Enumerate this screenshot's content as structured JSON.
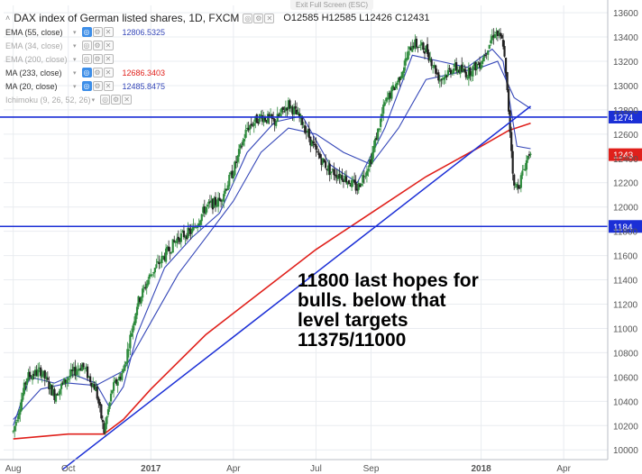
{
  "header": {
    "title": "DAX index of German listed shares, 1D, FXCM",
    "open": "O12585",
    "high": "H12585",
    "low": "L12426",
    "close": "C12431",
    "exit_full_screen": "Exit Full Screen (ESC)",
    "collapse_glyph": "˄",
    "button_glyphs": [
      "◎",
      "⚙",
      "✕",
      "▾"
    ]
  },
  "indicators": [
    {
      "name": "EMA (55, close)",
      "value": "12806.5325",
      "color": "#3547b8",
      "visible": true
    },
    {
      "name": "EMA (34, close)",
      "value": "",
      "color": "#999999",
      "visible": false
    },
    {
      "name": "EMA (200, close)",
      "value": "",
      "color": "#999999",
      "visible": false
    },
    {
      "name": "MA (233, close)",
      "value": "12686.3403",
      "color": "#e0201b",
      "visible": true
    },
    {
      "name": "MA (20, close)",
      "value": "12485.8475",
      "color": "#3547b8",
      "visible": true
    },
    {
      "name": "Ichimoku (9, 26, 52, 26)",
      "value": "",
      "color": "#999999",
      "visible": false
    }
  ],
  "annotation": "11800 last hopes for\nbulls. below that\nlevel targets\n11375/11000",
  "chart_data": {
    "type": "candlestick",
    "symbol": "DAX",
    "interval": "1D",
    "x_ticks": [
      "Aug",
      "Oct",
      "2017",
      "Apr",
      "Jul",
      "Sep",
      "2018",
      "Apr"
    ],
    "x_tick_months": [
      0,
      2,
      5,
      8,
      11,
      13,
      17,
      20
    ],
    "x_range_months": [
      -0.35,
      21.6
    ],
    "ylim": [
      9920,
      13660
    ],
    "y_ticks": [
      13600,
      13400,
      13200,
      13000,
      12800,
      12600,
      12400,
      12200,
      12000,
      11800,
      11600,
      11400,
      11200,
      11000,
      10800,
      10600,
      10400,
      10200,
      10000
    ],
    "price_path": [
      [
        0,
        10150
      ],
      [
        0.5,
        10600
      ],
      [
        1,
        10650
      ],
      [
        1.5,
        10450
      ],
      [
        2,
        10600
      ],
      [
        2.5,
        10700
      ],
      [
        3,
        10500
      ],
      [
        3.3,
        10150
      ],
      [
        3.6,
        10500
      ],
      [
        4,
        10650
      ],
      [
        4.5,
        11200
      ],
      [
        5,
        11450
      ],
      [
        5.5,
        11600
      ],
      [
        6,
        11750
      ],
      [
        6.5,
        11800
      ],
      [
        7,
        12000
      ],
      [
        7.5,
        12050
      ],
      [
        8,
        12300
      ],
      [
        8.5,
        12650
      ],
      [
        9,
        12750
      ],
      [
        9.5,
        12700
      ],
      [
        10,
        12850
      ],
      [
        10.5,
        12700
      ],
      [
        11,
        12450
      ],
      [
        11.5,
        12300
      ],
      [
        12,
        12250
      ],
      [
        12.5,
        12150
      ],
      [
        13,
        12400
      ],
      [
        13.5,
        12850
      ],
      [
        14,
        13050
      ],
      [
        14.5,
        13350
      ],
      [
        15,
        13300
      ],
      [
        15.5,
        13050
      ],
      [
        16,
        13150
      ],
      [
        16.5,
        13100
      ],
      [
        17,
        13200
      ],
      [
        17.5,
        13450
      ],
      [
        17.8,
        13350
      ],
      [
        18,
        12800
      ],
      [
        18.2,
        12150
      ],
      [
        18.4,
        12200
      ],
      [
        18.6,
        12350
      ],
      [
        18.8,
        12480
      ]
    ],
    "overlays": [
      {
        "name": "MA (233, close)",
        "color": "#e0201b",
        "points": [
          [
            0,
            10090
          ],
          [
            2,
            10130
          ],
          [
            3.3,
            10130
          ],
          [
            4,
            10250
          ],
          [
            5,
            10500
          ],
          [
            7,
            10950
          ],
          [
            9,
            11300
          ],
          [
            11,
            11650
          ],
          [
            13,
            11950
          ],
          [
            15,
            12250
          ],
          [
            17,
            12500
          ],
          [
            18,
            12630
          ],
          [
            18.8,
            12690
          ]
        ]
      },
      {
        "name": "EMA (55, close)",
        "color": "#3547b8",
        "points": [
          [
            0,
            10250
          ],
          [
            1,
            10500
          ],
          [
            2,
            10550
          ],
          [
            3,
            10530
          ],
          [
            4,
            10650
          ],
          [
            5,
            11050
          ],
          [
            6,
            11450
          ],
          [
            7,
            11750
          ],
          [
            8,
            12050
          ],
          [
            9,
            12450
          ],
          [
            10,
            12650
          ],
          [
            11,
            12600
          ],
          [
            12,
            12450
          ],
          [
            13,
            12350
          ],
          [
            14,
            12650
          ],
          [
            15,
            13050
          ],
          [
            16,
            13100
          ],
          [
            17,
            13150
          ],
          [
            17.6,
            13200
          ],
          [
            18.2,
            12900
          ],
          [
            18.8,
            12810
          ]
        ]
      },
      {
        "name": "MA (20, close)",
        "color": "#3547b8",
        "points": [
          [
            0,
            10200
          ],
          [
            0.6,
            10600
          ],
          [
            1.5,
            10550
          ],
          [
            2.2,
            10620
          ],
          [
            3,
            10550
          ],
          [
            3.5,
            10350
          ],
          [
            4,
            10520
          ],
          [
            4.5,
            10950
          ],
          [
            5.5,
            11500
          ],
          [
            6.5,
            11750
          ],
          [
            7.5,
            11950
          ],
          [
            8.5,
            12450
          ],
          [
            9.5,
            12700
          ],
          [
            10.5,
            12750
          ],
          [
            11.5,
            12350
          ],
          [
            12.5,
            12200
          ],
          [
            13.5,
            12650
          ],
          [
            14.5,
            13250
          ],
          [
            15.5,
            13200
          ],
          [
            16.5,
            13150
          ],
          [
            17.4,
            13300
          ],
          [
            17.8,
            13200
          ],
          [
            18.3,
            12500
          ],
          [
            18.8,
            12480
          ]
        ]
      }
    ],
    "trendline": {
      "color": "#1b2fd6",
      "from": [
        1.8,
        9840
      ],
      "to": [
        18.8,
        12830
      ]
    },
    "horizontal_levels": [
      {
        "price": 12740,
        "label": "1274",
        "color": "#1b2fd6"
      },
      {
        "price": 11840,
        "label": "1184",
        "color": "#1b2fd6"
      }
    ],
    "last_price": {
      "price": 12431,
      "label": "1243",
      "color": "#e0201b"
    },
    "colors": {
      "up": "#2e8b3d",
      "down": "#222222",
      "grid": "#e9ecf0",
      "axis_text": "#555555"
    }
  }
}
